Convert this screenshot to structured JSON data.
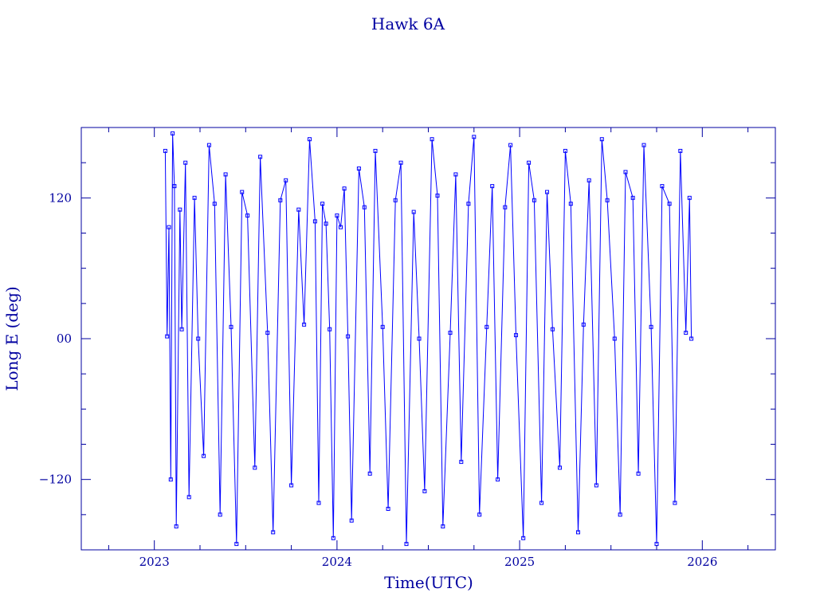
{
  "chart_data": {
    "type": "scatter",
    "title": "Hawk 6A",
    "xlabel": "Time(UTC)",
    "ylabel": "Long E (deg)",
    "xlim": [
      2022.6,
      2026.4
    ],
    "ylim": [
      -180,
      180
    ],
    "x_ticks": [
      2023,
      2024,
      2025,
      2026
    ],
    "x_tick_labels": [
      "2023",
      "2024",
      "2025",
      "2026"
    ],
    "y_ticks": [
      -120,
      0,
      120
    ],
    "y_tick_labels": [
      "−120",
      "00",
      "120"
    ],
    "grid": false,
    "legend": "none",
    "colors": {
      "axes": "#0000a0",
      "data": "#0000ff"
    },
    "series": [
      {
        "x": [
          2023.06,
          2023.07,
          2023.08,
          2023.09,
          2023.1,
          2023.11,
          2023.12,
          2023.14,
          2023.15,
          2023.17,
          2023.19,
          2023.22,
          2023.24,
          2023.27,
          2023.3,
          2023.33,
          2023.36,
          2023.39,
          2023.42,
          2023.45,
          2023.48,
          2023.51,
          2023.55,
          2023.58,
          2023.62,
          2023.65,
          2023.69,
          2023.72,
          2023.75,
          2023.79,
          2023.82,
          2023.85,
          2023.88,
          2023.9,
          2023.92,
          2023.94,
          2023.96,
          2023.98,
          2024.0,
          2024.02,
          2024.04,
          2024.06,
          2024.08,
          2024.12,
          2024.15,
          2024.18,
          2024.21,
          2024.25,
          2024.28,
          2024.32,
          2024.35,
          2024.38,
          2024.42,
          2024.45,
          2024.48,
          2024.52,
          2024.55,
          2024.58,
          2024.62,
          2024.65,
          2024.68,
          2024.72,
          2024.75,
          2024.78,
          2024.82,
          2024.85,
          2024.88,
          2024.92,
          2024.95,
          2024.98,
          2025.02,
          2025.05,
          2025.08,
          2025.12,
          2025.15,
          2025.18,
          2025.22,
          2025.25,
          2025.28,
          2025.32,
          2025.35,
          2025.38,
          2025.42,
          2025.45,
          2025.48,
          2025.52,
          2025.55,
          2025.58,
          2025.62,
          2025.65,
          2025.68,
          2025.72,
          2025.75,
          2025.78,
          2025.82,
          2025.85,
          2025.88,
          2025.91,
          2025.93,
          2025.94
        ],
        "y": [
          160,
          2,
          95,
          -120,
          175,
          130,
          -160,
          110,
          8,
          150,
          -135,
          120,
          0,
          -100,
          165,
          115,
          -150,
          140,
          10,
          -175,
          125,
          105,
          -110,
          155,
          5,
          -165,
          118,
          135,
          -125,
          110,
          12,
          170,
          100,
          -140,
          115,
          98,
          8,
          -170,
          105,
          95,
          128,
          2,
          -155,
          145,
          112,
          -115,
          160,
          10,
          -145,
          118,
          150,
          -175,
          108,
          0,
          -130,
          170,
          122,
          -160,
          5,
          140,
          -105,
          115,
          172,
          -150,
          10,
          130,
          -120,
          112,
          165,
          3,
          -170,
          150,
          118,
          -140,
          125,
          8,
          -110,
          160,
          115,
          -165,
          12,
          135,
          -125,
          170,
          118,
          0,
          -150,
          142,
          120,
          -115,
          165,
          10,
          -175,
          130,
          115,
          -140,
          160,
          5,
          120,
          0
        ]
      }
    ]
  }
}
